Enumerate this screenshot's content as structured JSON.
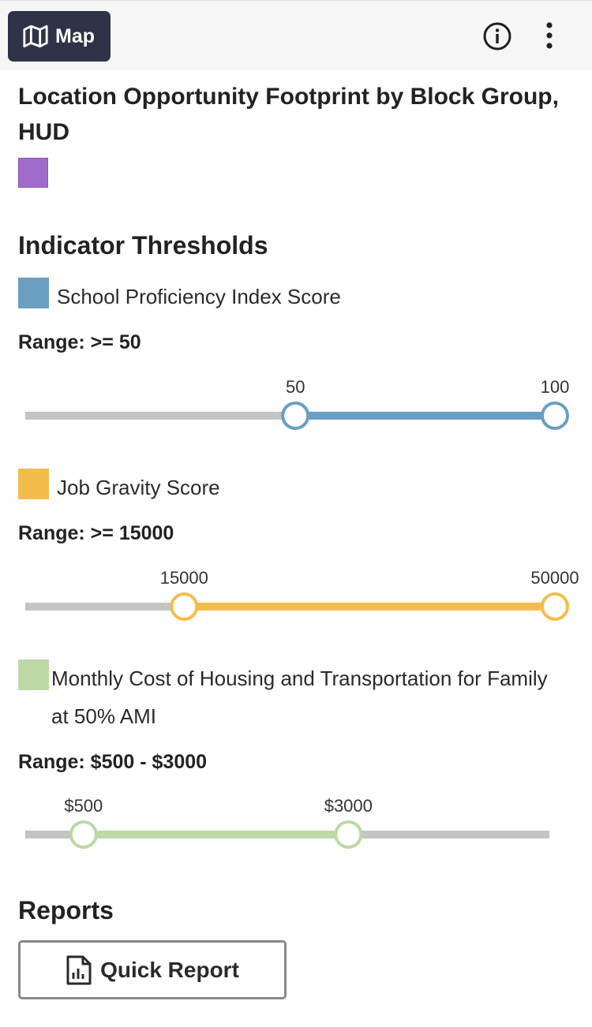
{
  "toolbar": {
    "map_label": "Map",
    "map_icon": "map-icon",
    "info_icon": "info-circle-icon",
    "more_icon": "more-vertical-icon"
  },
  "layer": {
    "title": "Location Opportunity Footprint by Block Group, HUD",
    "color": "#a06bcb"
  },
  "indicators_heading": "Indicator Thresholds",
  "indicators": [
    {
      "name": "School Proficiency Index Score",
      "color": "#6b9fc1",
      "range_text": "Range: >= 50",
      "low_label": "50",
      "high_label": "100",
      "low_fraction": 0.51,
      "high_fraction": 1.0
    },
    {
      "name": "Job Gravity Score",
      "color": "#f3bd4c",
      "range_text": "Range: >= 15000",
      "low_label": "15000",
      "high_label": "50000",
      "low_fraction": 0.3,
      "high_fraction": 1.0
    },
    {
      "name": "Monthly Cost of Housing and Transportation for Family at 50% AMI",
      "color": "#bcd8a6",
      "range_text": "Range: $500 - $3000",
      "low_label": "$500",
      "high_label": "$3000",
      "low_fraction": 0.11,
      "high_fraction": 0.61
    }
  ],
  "reports": {
    "heading": "Reports",
    "quick_report_label": "Quick Report",
    "quick_report_icon": "report-chart-icon"
  }
}
